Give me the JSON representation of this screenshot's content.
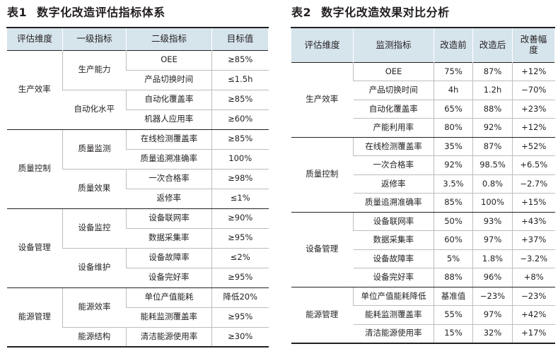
{
  "table1": {
    "number": "表1",
    "title": "数字化改造评估指标体系",
    "headers": [
      "评估维度",
      "一级指标",
      "二级指标",
      "目标值"
    ],
    "groups": [
      {
        "dimension": "生产效率",
        "subgroups": [
          {
            "level1": "生产能力",
            "rows": [
              {
                "level2": "OEE",
                "target": "≥85%"
              },
              {
                "level2": "产品切换时间",
                "target": "≤1.5h"
              }
            ]
          },
          {
            "level1": "自动化水平",
            "rows": [
              {
                "level2": "自动化覆盖率",
                "target": "≥85%"
              },
              {
                "level2": "机器人应用率",
                "target": "≥60%"
              }
            ]
          }
        ]
      },
      {
        "dimension": "质量控制",
        "subgroups": [
          {
            "level1": "质量监测",
            "rows": [
              {
                "level2": "在线检测覆盖率",
                "target": "≥85%"
              },
              {
                "level2": "质量追溯准确率",
                "target": "100%"
              }
            ]
          },
          {
            "level1": "质量效果",
            "rows": [
              {
                "level2": "一次合格率",
                "target": "≥98%"
              },
              {
                "level2": "返修率",
                "target": "≤1%"
              }
            ]
          }
        ]
      },
      {
        "dimension": "设备管理",
        "subgroups": [
          {
            "level1": "设备监控",
            "rows": [
              {
                "level2": "设备联网率",
                "target": "≥90%"
              },
              {
                "level2": "数据采集率",
                "target": "≥95%"
              }
            ]
          },
          {
            "level1": "设备维护",
            "rows": [
              {
                "level2": "设备故障率",
                "target": "≤2%"
              },
              {
                "level2": "设备完好率",
                "target": "≥95%"
              }
            ]
          }
        ]
      },
      {
        "dimension": "能源管理",
        "subgroups": [
          {
            "level1": "能源效率",
            "rows": [
              {
                "level2": "单位产值能耗",
                "target": "降低20%"
              },
              {
                "level2": "能耗监测覆盖率",
                "target": "≥95%"
              }
            ]
          },
          {
            "level1": "能源结构",
            "rows": [
              {
                "level2": "清洁能源使用率",
                "target": "≥30%"
              }
            ]
          }
        ]
      }
    ]
  },
  "table2": {
    "number": "表2",
    "title": "数字化改造效果对比分析",
    "headers": [
      "评估维度",
      "监测指标",
      "改造前",
      "改造后",
      "改善幅度"
    ],
    "groups": [
      {
        "dimension": "生产效率",
        "rows": [
          {
            "metric": "OEE",
            "before": "75%",
            "after": "87%",
            "change": "+12%"
          },
          {
            "metric": "产品切换时间",
            "before": "4h",
            "after": "1.2h",
            "change": "−70%"
          },
          {
            "metric": "自动化覆盖率",
            "before": "65%",
            "after": "88%",
            "change": "+23%"
          },
          {
            "metric": "产能利用率",
            "before": "80%",
            "after": "92%",
            "change": "+12%"
          }
        ]
      },
      {
        "dimension": "质量控制",
        "rows": [
          {
            "metric": "在线检测覆盖率",
            "before": "35%",
            "after": "87%",
            "change": "+52%"
          },
          {
            "metric": "一次合格率",
            "before": "92%",
            "after": "98.5%",
            "change": "+6.5%"
          },
          {
            "metric": "返修率",
            "before": "3.5%",
            "after": "0.8%",
            "change": "−2.7%"
          },
          {
            "metric": "质量追溯准确率",
            "before": "85%",
            "after": "100%",
            "change": "+15%"
          }
        ]
      },
      {
        "dimension": "设备管理",
        "rows": [
          {
            "metric": "设备联网率",
            "before": "50%",
            "after": "93%",
            "change": "+43%"
          },
          {
            "metric": "数据采集率",
            "before": "60%",
            "after": "97%",
            "change": "+37%"
          },
          {
            "metric": "设备故障率",
            "before": "5%",
            "after": "1.8%",
            "change": "−3.2%"
          },
          {
            "metric": "设备完好率",
            "before": "88%",
            "after": "96%",
            "change": "+8%"
          }
        ]
      },
      {
        "dimension": "能源管理",
        "rows": [
          {
            "metric": "单位产值能耗降低",
            "before": "基准值",
            "after": "−23%",
            "change": "−23%"
          },
          {
            "metric": "能耗监测覆盖率",
            "before": "55%",
            "after": "97%",
            "change": "+42%"
          },
          {
            "metric": "清洁能源使用率",
            "before": "15%",
            "after": "32%",
            "change": "+17%"
          }
        ]
      }
    ]
  }
}
